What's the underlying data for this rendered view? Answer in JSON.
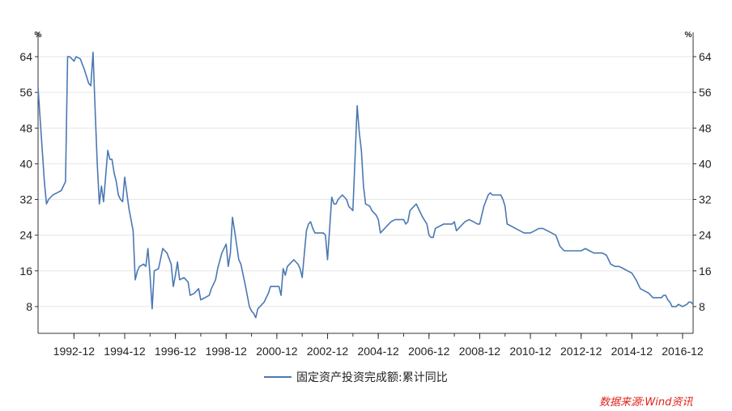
{
  "chart_data": {
    "type": "line",
    "y_unit_left": "%",
    "y_unit_right": "%",
    "ylim": [
      2,
      68
    ],
    "yticks": [
      8,
      16,
      24,
      32,
      40,
      48,
      56,
      64
    ],
    "xlim": [
      "1991-07",
      "2017-05"
    ],
    "xticks": [
      "1992-12",
      "1994-12",
      "1996-12",
      "1998-12",
      "2000-12",
      "2002-12",
      "2004-12",
      "2006-12",
      "2008-12",
      "2010-12",
      "2012-12",
      "2014-12",
      "2016-12"
    ],
    "grid": true,
    "legend_position": "bottom-center",
    "series": [
      {
        "name": "固定资产投资完成额:累计同比",
        "color": "#4a78b4",
        "points": [
          [
            "1991-07",
            57
          ],
          [
            "1991-08",
            50
          ],
          [
            "1991-09",
            43
          ],
          [
            "1991-10",
            36
          ],
          [
            "1991-11",
            31
          ],
          [
            "1991-12",
            32
          ],
          [
            "1992-02",
            33
          ],
          [
            "1992-04",
            33.5
          ],
          [
            "1992-06",
            34
          ],
          [
            "1992-08",
            36
          ],
          [
            "1992-09",
            64
          ],
          [
            "1992-10",
            64
          ],
          [
            "1992-11",
            63.5
          ],
          [
            "1992-12",
            63
          ],
          [
            "1993-01",
            64
          ],
          [
            "1993-03",
            63.5
          ],
          [
            "1993-05",
            61
          ],
          [
            "1993-07",
            58
          ],
          [
            "1993-08",
            57.5
          ],
          [
            "1993-09",
            65
          ],
          [
            "1993-10",
            52
          ],
          [
            "1993-11",
            40
          ],
          [
            "1993-12",
            31
          ],
          [
            "1994-01",
            35
          ],
          [
            "1994-02",
            31.5
          ],
          [
            "1994-04",
            43
          ],
          [
            "1994-05",
            41
          ],
          [
            "1994-06",
            41
          ],
          [
            "1994-07",
            38
          ],
          [
            "1994-08",
            36
          ],
          [
            "1994-09",
            33
          ],
          [
            "1994-10",
            32
          ],
          [
            "1994-11",
            31.5
          ],
          [
            "1994-12",
            37
          ],
          [
            "1995-02",
            30
          ],
          [
            "1995-04",
            25
          ],
          [
            "1995-05",
            14
          ],
          [
            "1995-06",
            16
          ],
          [
            "1995-07",
            17
          ],
          [
            "1995-09",
            17.5
          ],
          [
            "1995-10",
            17
          ],
          [
            "1995-11",
            21
          ],
          [
            "1995-12",
            15
          ],
          [
            "1996-01",
            7.5
          ],
          [
            "1996-02",
            16
          ],
          [
            "1996-04",
            16.5
          ],
          [
            "1996-06",
            21
          ],
          [
            "1996-08",
            20
          ],
          [
            "1996-10",
            17.5
          ],
          [
            "1996-11",
            12.5
          ],
          [
            "1996-12",
            15
          ],
          [
            "1997-01",
            18
          ],
          [
            "1997-02",
            14
          ],
          [
            "1997-04",
            14.5
          ],
          [
            "1997-06",
            13.5
          ],
          [
            "1997-07",
            10.5
          ],
          [
            "1997-09",
            11
          ],
          [
            "1997-10",
            11.5
          ],
          [
            "1997-11",
            12
          ],
          [
            "1997-12",
            9.5
          ],
          [
            "1998-02",
            10
          ],
          [
            "1998-04",
            10.5
          ],
          [
            "1998-05",
            12
          ],
          [
            "1998-07",
            14
          ],
          [
            "1998-08",
            16.5
          ],
          [
            "1998-10",
            20
          ],
          [
            "1998-12",
            22
          ],
          [
            "1999-01",
            17
          ],
          [
            "1999-02",
            20
          ],
          [
            "1999-03",
            28
          ],
          [
            "1999-04",
            25
          ],
          [
            "1999-06",
            18.5
          ],
          [
            "1999-07",
            17.5
          ],
          [
            "1999-09",
            13
          ],
          [
            "1999-11",
            8
          ],
          [
            "1999-12",
            7
          ],
          [
            "2000-01",
            6.5
          ],
          [
            "2000-02",
            5.5
          ],
          [
            "2000-03",
            7.5
          ],
          [
            "2000-05",
            8.5
          ],
          [
            "2000-06",
            9
          ],
          [
            "2000-08",
            11
          ],
          [
            "2000-09",
            12.5
          ],
          [
            "2000-11",
            12.5
          ],
          [
            "2000-12",
            12.5
          ],
          [
            "2001-01",
            12.5
          ],
          [
            "2001-02",
            10.5
          ],
          [
            "2001-03",
            16.5
          ],
          [
            "2001-04",
            15
          ],
          [
            "2001-05",
            17
          ],
          [
            "2001-07",
            18
          ],
          [
            "2001-08",
            18.5
          ],
          [
            "2001-10",
            17.5
          ],
          [
            "2001-11",
            16.5
          ],
          [
            "2001-12",
            14.5
          ],
          [
            "2002-02",
            25
          ],
          [
            "2002-03",
            26.5
          ],
          [
            "2002-04",
            27
          ],
          [
            "2002-05",
            25.5
          ],
          [
            "2002-06",
            24.5
          ],
          [
            "2002-08",
            24.5
          ],
          [
            "2002-10",
            24.5
          ],
          [
            "2002-11",
            24
          ],
          [
            "2002-12",
            18.5
          ],
          [
            "2003-02",
            32.5
          ],
          [
            "2003-03",
            31
          ],
          [
            "2003-04",
            31
          ],
          [
            "2003-05",
            32
          ],
          [
            "2003-07",
            33
          ],
          [
            "2003-09",
            32
          ],
          [
            "2003-10",
            30.5
          ],
          [
            "2003-12",
            29.5
          ],
          [
            "2004-02",
            53
          ],
          [
            "2004-03",
            47
          ],
          [
            "2004-04",
            43
          ],
          [
            "2004-05",
            35
          ],
          [
            "2004-06",
            31
          ],
          [
            "2004-08",
            30.5
          ],
          [
            "2004-09",
            29.5
          ],
          [
            "2004-11",
            28.5
          ],
          [
            "2004-12",
            27.5
          ],
          [
            "2005-01",
            24.5
          ],
          [
            "2005-02",
            25
          ],
          [
            "2005-04",
            26
          ],
          [
            "2005-06",
            27
          ],
          [
            "2005-08",
            27.5
          ],
          [
            "2005-10",
            27.5
          ],
          [
            "2005-12",
            27.5
          ],
          [
            "2006-01",
            26.5
          ],
          [
            "2006-02",
            27
          ],
          [
            "2006-03",
            29.5
          ],
          [
            "2006-05",
            30.5
          ],
          [
            "2006-06",
            31
          ],
          [
            "2006-07",
            30
          ],
          [
            "2006-09",
            28
          ],
          [
            "2006-11",
            26.5
          ],
          [
            "2006-12",
            24
          ],
          [
            "2007-01",
            23.5
          ],
          [
            "2007-02",
            23.5
          ],
          [
            "2007-03",
            25.5
          ],
          [
            "2007-05",
            26
          ],
          [
            "2007-07",
            26.5
          ],
          [
            "2007-09",
            26.5
          ],
          [
            "2007-11",
            26.5
          ],
          [
            "2007-12",
            27
          ],
          [
            "2008-01",
            25
          ],
          [
            "2008-02",
            25.5
          ],
          [
            "2008-03",
            26
          ],
          [
            "2008-05",
            27
          ],
          [
            "2008-07",
            27.5
          ],
          [
            "2008-09",
            27
          ],
          [
            "2008-11",
            26.5
          ],
          [
            "2008-12",
            26.5
          ],
          [
            "2009-02",
            30.5
          ],
          [
            "2009-04",
            33
          ],
          [
            "2009-05",
            33.5
          ],
          [
            "2009-06",
            33
          ],
          [
            "2009-08",
            33
          ],
          [
            "2009-10",
            33
          ],
          [
            "2009-11",
            32
          ],
          [
            "2009-12",
            30.5
          ],
          [
            "2010-01",
            26.5
          ],
          [
            "2010-03",
            26
          ],
          [
            "2010-05",
            25.5
          ],
          [
            "2010-07",
            25
          ],
          [
            "2010-09",
            24.5
          ],
          [
            "2010-11",
            24.5
          ],
          [
            "2010-12",
            24.5
          ],
          [
            "2011-02",
            25
          ],
          [
            "2011-04",
            25.5
          ],
          [
            "2011-06",
            25.5
          ],
          [
            "2011-08",
            25
          ],
          [
            "2011-10",
            24.5
          ],
          [
            "2011-12",
            24
          ],
          [
            "2012-02",
            21.5
          ],
          [
            "2012-04",
            20.5
          ],
          [
            "2012-06",
            20.5
          ],
          [
            "2012-08",
            20.5
          ],
          [
            "2012-10",
            20.5
          ],
          [
            "2012-12",
            20.5
          ],
          [
            "2013-02",
            21
          ],
          [
            "2013-04",
            20.5
          ],
          [
            "2013-06",
            20
          ],
          [
            "2013-08",
            20
          ],
          [
            "2013-10",
            20
          ],
          [
            "2013-12",
            19.5
          ],
          [
            "2014-02",
            17.5
          ],
          [
            "2014-04",
            17
          ],
          [
            "2014-06",
            17
          ],
          [
            "2014-08",
            16.5
          ],
          [
            "2014-10",
            16
          ],
          [
            "2014-12",
            15.5
          ],
          [
            "2015-02",
            14
          ],
          [
            "2015-04",
            12
          ],
          [
            "2015-06",
            11.5
          ],
          [
            "2015-08",
            11
          ],
          [
            "2015-10",
            10
          ],
          [
            "2015-12",
            10
          ],
          [
            "2016-02",
            10
          ],
          [
            "2016-03",
            10.5
          ],
          [
            "2016-04",
            10.5
          ],
          [
            "2016-05",
            9.5
          ],
          [
            "2016-06",
            9
          ],
          [
            "2016-07",
            8
          ],
          [
            "2016-09",
            8
          ],
          [
            "2016-10",
            8.5
          ],
          [
            "2016-12",
            8
          ],
          [
            "2017-02",
            8.5
          ],
          [
            "2017-03",
            9
          ],
          [
            "2017-04",
            9
          ],
          [
            "2017-05",
            8.5
          ]
        ]
      }
    ]
  },
  "legend": {
    "label": "固定资产投资完成额:累计同比"
  },
  "source": {
    "text": "数据来源:Wind资讯"
  }
}
